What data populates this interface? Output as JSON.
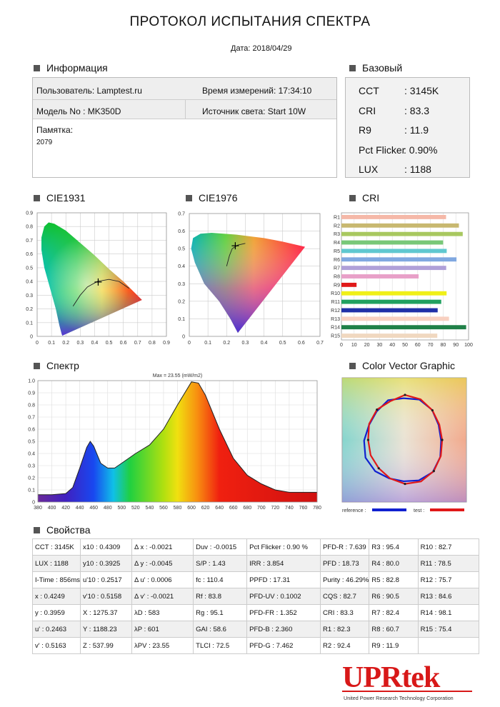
{
  "header": {
    "title": "ПРОТОКОЛ ИСПЫТАНИЯ СПЕКТРА",
    "date": "Дата: 2018/04/29"
  },
  "sections": {
    "info": "Информация",
    "basic": "Базовый",
    "cie1931": "CIE1931",
    "cie1976": "CIE1976",
    "cri": "CRI",
    "spectrum": "Спектр",
    "vector": "Color Vector Graphic",
    "props": "Свойства"
  },
  "info": {
    "user": "Пользователь: Lamptest.ru",
    "time": "Время измерений: 17:34:10",
    "model": "Модель No : MK350D",
    "source": "Источник света: Start 10W",
    "memo_label": "Памятка:",
    "memo_value": "2079"
  },
  "basic": [
    {
      "label": "CCT",
      "value": ": 3145K"
    },
    {
      "label": "CRI",
      "value": ": 83.3"
    },
    {
      "label": "R9",
      "value": ": 11.9"
    },
    {
      "label": "Pct Flicker",
      "value": ": 0.90%"
    },
    {
      "label": "LUX",
      "value": ": 1188"
    }
  ],
  "cie1931": {
    "x_ticks": [
      "0",
      "0.1",
      "0.2",
      "0.3",
      "0.4",
      "0.5",
      "0.6",
      "0.7",
      "0.8",
      "0.9"
    ],
    "y_ticks": [
      "0",
      "0.1",
      "0.2",
      "0.3",
      "0.4",
      "0.5",
      "0.6",
      "0.7",
      "0.8",
      "0.9"
    ],
    "point": [
      0.4249,
      0.3959
    ]
  },
  "cie1976": {
    "x_ticks": [
      "0",
      "0.1",
      "0.2",
      "0.3",
      "0.4",
      "0.5",
      "0.6",
      "0.7"
    ],
    "y_ticks": [
      "0",
      "0.1",
      "0.2",
      "0.3",
      "0.4",
      "0.5",
      "0.6",
      "0.7"
    ],
    "point": [
      0.2463,
      0.5163
    ]
  },
  "chart_data": [
    {
      "type": "bar",
      "categories": [
        "R1",
        "R2",
        "R3",
        "R4",
        "R5",
        "R6",
        "R7",
        "R8",
        "R9",
        "R10",
        "R11",
        "R12",
        "R13",
        "R14",
        "R15"
      ],
      "values": [
        82.3,
        92.4,
        95.4,
        80.0,
        82.8,
        90.5,
        82.4,
        60.7,
        11.9,
        82.7,
        78.5,
        75.7,
        84.6,
        98.1,
        75.4
      ],
      "colors": [
        "#f5b8a8",
        "#c8b870",
        "#a8c860",
        "#78c878",
        "#60c8d0",
        "#80a8e0",
        "#b0a0d8",
        "#e8a0c8",
        "#e01818",
        "#f0f018",
        "#20a060",
        "#2030a8",
        "#f8d0c0",
        "#208048",
        "#f0d8c0"
      ],
      "xlim": [
        0,
        100
      ],
      "x_ticks": [
        "0",
        "10",
        "20",
        "30",
        "40",
        "50",
        "60",
        "70",
        "80",
        "90",
        "100"
      ]
    },
    {
      "type": "area",
      "title": "Max = 23.55 (mW/m2)",
      "x": [
        380,
        400,
        420,
        430,
        440,
        450,
        455,
        460,
        470,
        480,
        490,
        500,
        520,
        540,
        560,
        580,
        600,
        610,
        620,
        640,
        660,
        680,
        700,
        720,
        740,
        760,
        780
      ],
      "y": [
        0.06,
        0.06,
        0.07,
        0.12,
        0.28,
        0.45,
        0.5,
        0.46,
        0.32,
        0.28,
        0.28,
        0.32,
        0.4,
        0.47,
        0.6,
        0.8,
        0.99,
        0.98,
        0.88,
        0.6,
        0.36,
        0.22,
        0.15,
        0.1,
        0.08,
        0.08,
        0.08
      ],
      "xlim": [
        380,
        780
      ],
      "ylim": [
        0,
        1.0
      ],
      "x_ticks": [
        "380",
        "400",
        "420",
        "440",
        "460",
        "480",
        "500",
        "520",
        "540",
        "560",
        "580",
        "600",
        "620",
        "640",
        "660",
        "680",
        "700",
        "720",
        "740",
        "760",
        "780"
      ],
      "y_ticks": [
        "0",
        "0.1",
        "0.2",
        "0.3",
        "0.4",
        "0.5",
        "0.6",
        "0.7",
        "0.8",
        "0.9",
        "1.0"
      ]
    }
  ],
  "vector": {
    "reference_label": "reference :",
    "test_label": "test :",
    "reference_color": "#1020d0",
    "test_color": "#e01818"
  },
  "props": [
    [
      "CCT   : 3145K",
      "x10   : 0.4309",
      "Δ x     : -0.0021",
      "Duv     : -0.0015",
      "Pct Flicker : 0.90 %",
      "PFD-R : 7.639",
      "R3  : 95.4",
      "R10 : 82.7"
    ],
    [
      "LUX     : 1188",
      "y10   : 0.3925",
      "Δ y     : -0.0045",
      "S/P     : 1.43",
      "IRR        : 3.854",
      "PFD     : 18.73",
      "R4  : 80.0",
      "R11 : 78.5"
    ],
    [
      "I-Time  : 856ms",
      "u'10  : 0.2517",
      "Δ u'    : 0.0006",
      "fc      : 110.4",
      "PPFD      : 17.31",
      "Purity : 46.29%",
      "R5  : 82.8",
      "R12 : 75.7"
    ],
    [
      "x     : 0.4249",
      "v'10  : 0.5158",
      "Δ v'    : -0.0021",
      "Rf      : 83.8",
      "PFD-UV  : 0.1002",
      "CQS    : 82.7",
      "R6  : 90.5",
      "R13 : 84.6"
    ],
    [
      "y     : 0.3959",
      "X     : 1275.37",
      "λD      : 583",
      "Rg      : 95.1",
      "PFD-FR  : 1.352",
      "CRI     : 83.3",
      "R7  : 82.4",
      "R14 : 98.1"
    ],
    [
      "u'    : 0.2463",
      "Y     : 1188.23",
      "λP      : 601",
      "GAI     : 58.6",
      "PFD-B   : 2.360",
      "R1      : 82.3",
      "R8  : 60.7",
      "R15 : 75.4"
    ],
    [
      "v'    : 0.5163",
      "Z     : 537.99",
      "λPV     : 23.55",
      "TLCI    : 72.5",
      "PFD-G   : 7.462",
      "R2      : 92.4",
      "R9  : 11.9",
      ""
    ]
  ],
  "logo": {
    "brand": "UPRtek",
    "tagline": "United Power Research Technology Corporation"
  }
}
